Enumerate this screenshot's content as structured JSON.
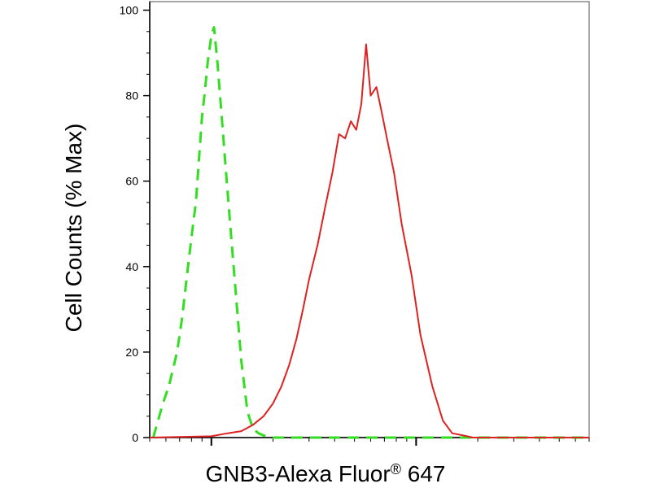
{
  "chart_data": {
    "type": "line",
    "title": "",
    "xlabel_main": "GNB3-Alexa Fluor",
    "xlabel_reg": "®",
    "xlabel_tail": " 647",
    "ylabel": "Cell Counts (% Max)",
    "x_scale": "log",
    "xlim": [
      0.5,
      70
    ],
    "ylim": [
      0,
      102
    ],
    "y_ticks": [
      0,
      20,
      40,
      60,
      80,
      100
    ],
    "y_tick_labels": [
      "0",
      "20",
      "40",
      "60",
      "80",
      "100"
    ],
    "grid": false,
    "legend": "none",
    "series": [
      {
        "style": "dashed",
        "color": "#33dd22",
        "x": [
          0.52,
          0.58,
          0.62,
          0.68,
          0.72,
          0.76,
          0.8,
          0.84,
          0.87,
          0.9,
          0.93,
          0.96,
          1.0,
          1.03,
          1.07,
          1.12,
          1.18,
          1.25,
          1.32,
          1.4,
          1.5,
          1.6,
          1.7,
          1.8,
          2.0,
          2.2,
          2.5,
          3.0,
          4.0,
          6.0,
          10.0,
          20.0,
          40.0,
          70.0
        ],
        "y": [
          0,
          8,
          12,
          20,
          28,
          38,
          47,
          55,
          65,
          75,
          81,
          88,
          94,
          96,
          88,
          76,
          62,
          47,
          33,
          18,
          6,
          2,
          1,
          0.5,
          0,
          0,
          0,
          0,
          0,
          0,
          0,
          0,
          0,
          0
        ]
      },
      {
        "style": "solid",
        "color": "#dd2222",
        "x": [
          0.5,
          1.0,
          1.2,
          1.4,
          1.6,
          1.8,
          2.0,
          2.2,
          2.4,
          2.6,
          2.8,
          3.0,
          3.3,
          3.6,
          3.9,
          4.2,
          4.5,
          4.8,
          5.1,
          5.4,
          5.7,
          6.0,
          6.4,
          6.8,
          7.2,
          7.8,
          8.5,
          9.5,
          10.5,
          12.0,
          13.5,
          15.0,
          17.0,
          19.0,
          22.0,
          26.0,
          32.0,
          45.0,
          70.0
        ],
        "y": [
          0,
          0.3,
          1,
          1.5,
          3,
          5,
          8,
          12,
          17,
          23,
          30,
          37,
          45,
          54,
          62,
          71,
          70,
          74,
          72,
          78,
          92,
          80,
          82,
          76,
          70,
          62,
          50,
          38,
          24,
          12,
          4,
          1,
          0.5,
          0,
          0,
          0,
          0,
          0,
          0
        ]
      }
    ]
  }
}
